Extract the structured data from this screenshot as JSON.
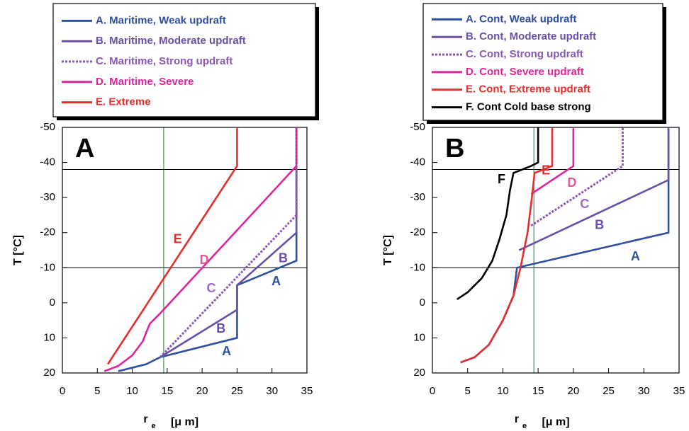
{
  "chart_data": [
    {
      "type": "line",
      "panel_label": "A",
      "y_label": "T [°C]",
      "x_label": "r",
      "x_label_subscript": "e",
      "x_label_unit": "[μ m]",
      "xlim": [
        0,
        35
      ],
      "xticks": [
        0,
        5,
        10,
        15,
        20,
        25,
        30,
        35
      ],
      "ylim": [
        20,
        -50
      ],
      "yticks": [
        -50,
        -40,
        -30,
        -20,
        -10,
        0,
        10,
        20
      ],
      "reference_lines": {
        "y": [
          -38,
          -10
        ],
        "y_color": "#000000",
        "x": [
          14.5
        ],
        "x_color": "#1f7a3a"
      },
      "series": [
        {
          "name": "A. Maritime, Weak updraft",
          "color": "#2e4fa0",
          "dash": false,
          "x": [
            8,
            10,
            12,
            13,
            14,
            25,
            25,
            33.5,
            33.5
          ],
          "values": [
            19.5,
            18.5,
            17.5,
            16.5,
            15.5,
            10,
            -5,
            -12,
            -50
          ]
        },
        {
          "name": "B. Maritime, Moderate updraft",
          "color": "#6a4fa8",
          "dash": false,
          "x": [
            14,
            25,
            25,
            33.5,
            33.5
          ],
          "values": [
            15.5,
            2,
            -5,
            -20,
            -50
          ]
        },
        {
          "name": "C. Maritime, Strong updraft",
          "color": "#8a56b8",
          "dash": true,
          "x": [
            14,
            33.5,
            33.5
          ],
          "values": [
            15.5,
            -25,
            -50
          ]
        },
        {
          "name": "D. Maritime, Severe",
          "color": "#e0259b",
          "dash": false,
          "x": [
            6,
            8,
            10,
            11.5,
            12.5,
            14,
            33.5,
            33.5
          ],
          "values": [
            19.5,
            18,
            15,
            11,
            6,
            3,
            -39,
            -50
          ]
        },
        {
          "name": "E. Extreme",
          "color": "#e52d2d",
          "dash": false,
          "x": [
            6.5,
            25,
            25
          ],
          "values": [
            17.5,
            -39,
            -50
          ]
        }
      ],
      "annotations": [
        {
          "text": "E",
          "x": 16.5,
          "y": -18,
          "color": "#e52d2d"
        },
        {
          "text": "D",
          "x": 20.3,
          "y": -12,
          "color": "#e05a9a"
        },
        {
          "text": "C",
          "x": 21.3,
          "y": -4,
          "color": "#9a6ac4"
        },
        {
          "text": "B",
          "x": 31.6,
          "y": -12.5,
          "color": "#6a4fa8"
        },
        {
          "text": "B",
          "x": 22.7,
          "y": 7.5,
          "color": "#6a4fa8"
        },
        {
          "text": "A",
          "x": 30.6,
          "y": -6,
          "color": "#2e4fa0"
        },
        {
          "text": "A",
          "x": 23.5,
          "y": 14,
          "color": "#2e4fa0"
        }
      ]
    },
    {
      "type": "line",
      "panel_label": "B",
      "y_label": "T [°C]",
      "x_label": "r",
      "x_label_subscript": "e",
      "x_label_unit": "[μ m]",
      "xlim": [
        0,
        35
      ],
      "xticks": [
        0,
        5,
        10,
        15,
        20,
        25,
        30,
        35
      ],
      "ylim": [
        20,
        -50
      ],
      "yticks": [
        -50,
        -40,
        -30,
        -20,
        -10,
        0,
        10,
        20
      ],
      "reference_lines": {
        "y": [
          -38,
          -10
        ],
        "y_color": "#000000",
        "x": [
          14.4
        ],
        "x_color": "#1f7a3a"
      },
      "series": [
        {
          "name": "A. Cont, Weak updraft",
          "color": "#2e4fa0",
          "dash": false,
          "x": [
            4,
            6,
            8,
            10,
            11.5,
            12,
            33.5,
            33.5
          ],
          "values": [
            17,
            15.5,
            12,
            5,
            -2,
            -10,
            -20,
            -50
          ]
        },
        {
          "name": "B. Cont, Moderate updraft",
          "color": "#6a4fa8",
          "dash": false,
          "x": [
            12.3,
            33.5,
            33.5
          ],
          "values": [
            -15,
            -35,
            -50
          ]
        },
        {
          "name": "C. Cont, Strong updraft",
          "color": "#8a56b8",
          "dash": true,
          "x": [
            14,
            27,
            27
          ],
          "values": [
            -22,
            -39,
            -50
          ]
        },
        {
          "name": "D. Cont, Severe updraft",
          "color": "#e0259b",
          "dash": false,
          "x": [
            14,
            20,
            20
          ],
          "values": [
            -31,
            -39,
            -50
          ]
        },
        {
          "name": "E. Cont, Extreme updraft",
          "color": "#e52d2d",
          "dash": false,
          "x": [
            4,
            6,
            8,
            10,
            11.5,
            12.5,
            13.5,
            14,
            14.5,
            17,
            17
          ],
          "values": [
            17,
            15.5,
            12,
            5,
            -2,
            -10,
            -20,
            -28,
            -37,
            -39,
            -50
          ]
        },
        {
          "name": "F. Cont Cold base strong",
          "color": "#000000",
          "dash": false,
          "x": [
            3.5,
            5,
            7,
            8.5,
            9.5,
            10.5,
            11,
            11.5,
            14,
            15,
            15
          ],
          "values": [
            -1,
            -3,
            -7,
            -12,
            -18,
            -25,
            -32,
            -37,
            -39,
            -40,
            -50
          ]
        }
      ],
      "annotations": [
        {
          "text": "E",
          "x": 16.1,
          "y": -37.5,
          "color": "#e52d2d"
        },
        {
          "text": "D",
          "x": 19.8,
          "y": -34,
          "color": "#e05a9a"
        },
        {
          "text": "F",
          "x": 9.8,
          "y": -35,
          "color": "#000000"
        },
        {
          "text": "C",
          "x": 21.6,
          "y": -28,
          "color": "#9a6ac4"
        },
        {
          "text": "B",
          "x": 23.7,
          "y": -22,
          "color": "#6a4fa8"
        },
        {
          "text": "A",
          "x": 28.8,
          "y": -13,
          "color": "#2e4fa0"
        }
      ]
    }
  ]
}
